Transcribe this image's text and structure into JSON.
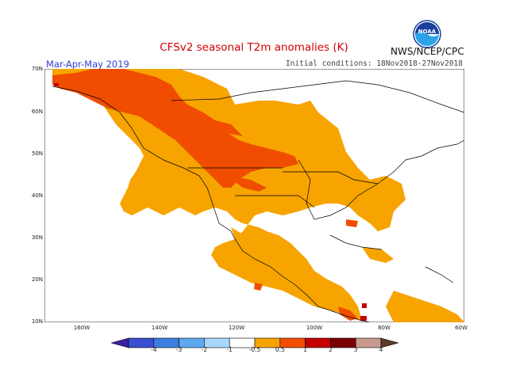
{
  "title": "CFSv2 seasonal T2m anomalies (K)",
  "season": "Mar-Apr-May 2019",
  "initial_conditions": "Initial conditions: 18Nov2018-27Nov2018",
  "agency": "NWS/NCEP/CPC",
  "logo_text": "NOAA",
  "lat_labels": [
    "70N",
    "60N",
    "50N",
    "40N",
    "30N",
    "20N",
    "10N"
  ],
  "lon_labels": [
    "160W",
    "140W",
    "120W",
    "100W",
    "80W",
    "60W"
  ],
  "colorbar": {
    "labels": [
      "-4",
      "-3",
      "-2",
      "-1",
      "-0.5",
      "0.5",
      "1",
      "2",
      "3",
      "4"
    ],
    "colors": [
      "#3a1fa0",
      "#3a4fcf",
      "#3c7de0",
      "#5fa8ef",
      "#a9d7fb",
      "#ffffff",
      "#f7a400",
      "#f04d00",
      "#c40000",
      "#7a0000",
      "#c89a8e",
      "#5c3a2e"
    ]
  },
  "colors": {
    "warm_05_1": "#f7a400",
    "warm_1_2": "#f04d00",
    "warm_2_3": "#c40000",
    "title": "#d40000",
    "season": "#2d3fd6"
  }
}
